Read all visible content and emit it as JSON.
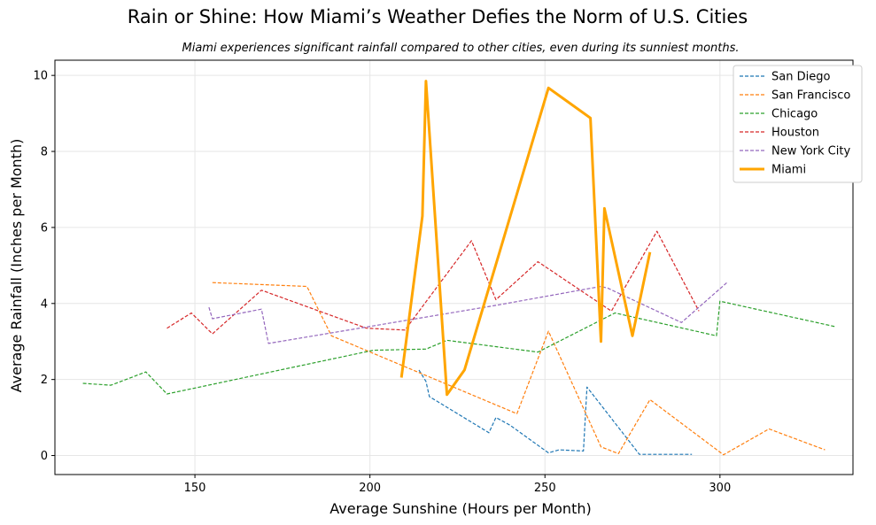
{
  "chart_data": {
    "type": "line",
    "title": "Rain or Shine: How Miami’s Weather Defies the Norm of U.S. Cities",
    "subtitle": "Miami experiences significant rainfall compared to other cities, even during its sunniest months.",
    "xlabel": "Average Sunshine (Hours per Month)",
    "ylabel": "Average Rainfall (Inches per Month)",
    "xlim": [
      110,
      338
    ],
    "ylim": [
      -0.5,
      10.4
    ],
    "xticks": [
      150,
      200,
      250,
      300
    ],
    "yticks": [
      0,
      2,
      4,
      6,
      8,
      10
    ],
    "grid": true,
    "legend_position": "top-right",
    "series": [
      {
        "name": "San Diego",
        "color": "#1f77b4",
        "style": "dashed",
        "x": [
          214,
          216,
          217,
          234,
          236,
          240,
          251,
          254,
          261,
          262,
          277,
          292
        ],
        "y": [
          2.25,
          1.95,
          1.55,
          0.6,
          1.0,
          0.8,
          0.07,
          0.15,
          0.12,
          1.8,
          0.03,
          0.03
        ]
      },
      {
        "name": "San Francisco",
        "color": "#ff7f0e",
        "style": "dashed",
        "x": [
          155,
          182,
          189,
          242,
          251,
          266,
          271,
          280,
          301,
          314,
          330
        ],
        "y": [
          4.55,
          4.45,
          3.15,
          1.1,
          3.27,
          0.23,
          0.05,
          1.47,
          0.02,
          0.7,
          0.15
        ]
      },
      {
        "name": "Chicago",
        "color": "#2ca02c",
        "style": "dashed",
        "x": [
          118,
          126,
          136,
          142,
          201,
          216,
          222,
          248,
          270,
          299,
          300,
          333
        ],
        "y": [
          1.9,
          1.85,
          2.2,
          1.62,
          2.77,
          2.8,
          3.03,
          2.72,
          3.75,
          3.15,
          4.06,
          3.39
        ]
      },
      {
        "name": "Houston",
        "color": "#d62728",
        "style": "dashed",
        "x": [
          142,
          149,
          155,
          169,
          199,
          210,
          229,
          236,
          248,
          269,
          282,
          294
        ],
        "y": [
          3.35,
          3.75,
          3.2,
          4.35,
          3.35,
          3.3,
          5.65,
          4.1,
          5.1,
          3.8,
          5.9,
          3.8
        ]
      },
      {
        "name": "New York City",
        "color": "#9467bd",
        "style": "dashed",
        "x": [
          154,
          155,
          169,
          171,
          236,
          266,
          268,
          289,
          302
        ],
        "y": [
          3.9,
          3.6,
          3.85,
          2.95,
          3.95,
          4.45,
          4.4,
          3.5,
          4.55
        ]
      },
      {
        "name": "Miami",
        "color": "#ffa500",
        "style": "solid",
        "x": [
          209,
          215,
          216,
          222,
          227,
          251,
          263,
          266,
          267,
          275,
          280
        ],
        "y": [
          2.05,
          6.3,
          9.85,
          1.6,
          2.25,
          9.67,
          8.88,
          3.0,
          6.5,
          3.15,
          5.35
        ]
      }
    ]
  }
}
